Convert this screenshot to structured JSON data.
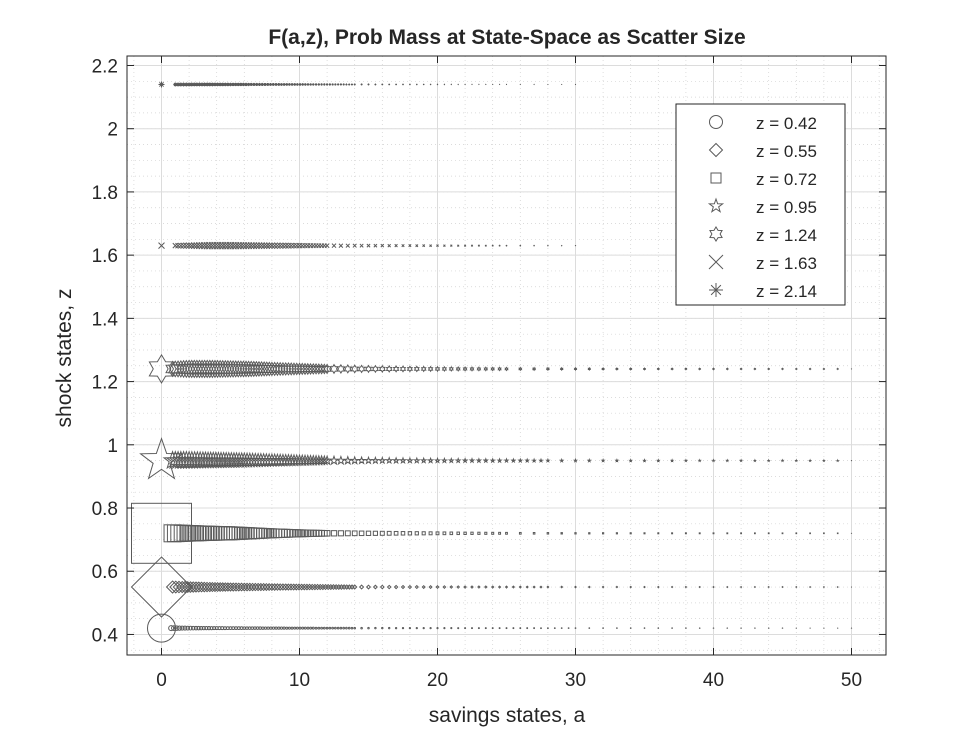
{
  "chart_data": {
    "type": "scatter",
    "title": "F(a,z), Prob Mass at State-Space as Scatter Size",
    "xlabel": "savings states, a",
    "ylabel": "shock states, z",
    "xlim": [
      -2.5,
      52.5
    ],
    "ylim": [
      0.335,
      2.23
    ],
    "xticks": [
      0,
      10,
      20,
      30,
      40,
      50
    ],
    "yticks": [
      0.4,
      0.6,
      0.8,
      1,
      1.2,
      1.4,
      1.6,
      1.8,
      2,
      2.2
    ],
    "xtick_labels": [
      "0",
      "10",
      "20",
      "30",
      "40",
      "50"
    ],
    "ytick_labels": [
      "0.4",
      "0.6",
      "0.8",
      "1",
      "1.2",
      "1.4",
      "1.6",
      "1.8",
      "2",
      "2.2"
    ],
    "grid": true,
    "legend_position": "top-right",
    "marker_color": "#5a5a5a",
    "series": [
      {
        "name": "z =  0.42",
        "z": 0.42,
        "marker": "circle",
        "a": [
          0,
          0.7,
          1.5,
          2.5,
          4,
          6,
          8.5,
          11,
          14,
          18,
          24,
          30,
          40,
          50
        ],
        "size": [
          14,
          5,
          4,
          3.5,
          3,
          2.6,
          2.2,
          1.9,
          1.6,
          1.3,
          1.0,
          0.8,
          0.6,
          0.5
        ]
      },
      {
        "name": "z =  0.55",
        "z": 0.55,
        "marker": "diamond",
        "a": [
          0,
          0.8,
          1.5,
          2.5,
          3.5,
          5,
          7,
          9,
          11.5,
          14,
          17.5,
          22,
          28,
          35,
          42,
          50
        ],
        "size": [
          30,
          12,
          11,
          10,
          9,
          8,
          7,
          6,
          5,
          4,
          3,
          2.2,
          1.6,
          1.2,
          0.9,
          0.7
        ]
      },
      {
        "name": "z =  0.72",
        "z": 0.72,
        "marker": "square",
        "a": [
          0,
          0.8,
          1.5,
          2.5,
          3.5,
          5,
          6.5,
          8,
          10,
          12,
          14.5,
          17.5,
          21,
          25,
          30,
          36,
          43,
          50
        ],
        "size": [
          30,
          17,
          16,
          15,
          14,
          13,
          11,
          9,
          7,
          5.5,
          4.5,
          3.5,
          2.6,
          1.8,
          1.3,
          1.0,
          0.8,
          0.6
        ]
      },
      {
        "name": "z =  0.95",
        "z": 0.95,
        "marker": "pentagram",
        "a": [
          0,
          0.8,
          1.8,
          3,
          4.5,
          6,
          8,
          10,
          12,
          14.5,
          17,
          20,
          24,
          28,
          33,
          38,
          44,
          50
        ],
        "size": [
          22,
          18,
          18,
          17,
          16,
          15,
          13,
          11,
          9,
          7,
          5.5,
          4.5,
          3.5,
          2.6,
          2.0,
          1.5,
          1.2,
          0.9
        ]
      },
      {
        "name": "z =  1.24",
        "z": 1.24,
        "marker": "hexagram",
        "a": [
          0,
          0.8,
          2,
          3.5,
          5,
          6.5,
          8,
          10,
          12,
          14.5,
          17.5,
          21,
          25,
          30,
          36,
          43,
          50
        ],
        "size": [
          14,
          15,
          17,
          17,
          16,
          15,
          13,
          11,
          9,
          7,
          5.5,
          4,
          3,
          2.2,
          1.6,
          1.2,
          0.9
        ]
      },
      {
        "name": "z =  1.63",
        "z": 1.63,
        "marker": "x",
        "a": [
          0,
          1,
          2,
          3.5,
          5,
          6.5,
          8,
          10,
          12,
          14.5,
          17.5,
          21,
          25,
          30
        ],
        "size": [
          3,
          5,
          6,
          7,
          7,
          6.5,
          6,
          5,
          4.2,
          3.4,
          2.6,
          1.8,
          1.2,
          0.8
        ]
      },
      {
        "name": "z =  2.14",
        "z": 2.14,
        "marker": "asterisk",
        "a": [
          0,
          1,
          2,
          3.5,
          5,
          6.5,
          8.5,
          11,
          14,
          17.5,
          21,
          25,
          30
        ],
        "size": [
          3,
          4,
          4,
          3.8,
          3.5,
          3.2,
          2.8,
          2.4,
          2.0,
          1.6,
          1.2,
          0.9,
          0.7
        ]
      }
    ]
  }
}
